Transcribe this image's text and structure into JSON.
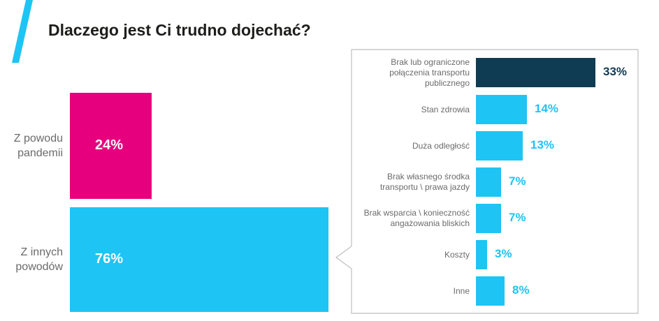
{
  "title": "Dlaczego jest Ci trudno dojechać?",
  "colors": {
    "accent": "#1ec4f4",
    "pandemic": "#e6007e",
    "other": "#1ec4f4",
    "highlight": "#0f3b53",
    "value_light": "#1ec4f4",
    "label": "#6b6b6b",
    "frame": "#bdbdbd"
  },
  "chart_data": [
    {
      "type": "bar",
      "orientation": "horizontal",
      "categories": [
        [
          "Z powodu",
          "pandemii"
        ],
        [
          "Z innych",
          "powodów"
        ]
      ],
      "values": [
        24,
        76
      ],
      "value_labels": [
        "24%",
        "76%"
      ],
      "unit": "%",
      "xlim": [
        0,
        76
      ]
    },
    {
      "type": "bar",
      "orientation": "horizontal",
      "categories": [
        [
          "Brak lub ograniczone",
          "połączenia transportu",
          "publicznego"
        ],
        [
          "Stan zdrowia"
        ],
        [
          "Duża odległość"
        ],
        [
          "Brak własnego środka",
          "transportu \\ prawa jazdy"
        ],
        [
          "Brak wsparcia \\ konieczność",
          "angażowania bliskich"
        ],
        [
          "Koszty"
        ],
        [
          "Inne"
        ]
      ],
      "values": [
        33,
        14,
        13,
        7,
        7,
        3,
        8
      ],
      "value_labels": [
        "33%",
        "14%",
        "13%",
        "7%",
        "7%",
        "3%",
        "8%"
      ],
      "highlight_index": 0,
      "unit": "%",
      "xlim": [
        0,
        33
      ]
    }
  ]
}
